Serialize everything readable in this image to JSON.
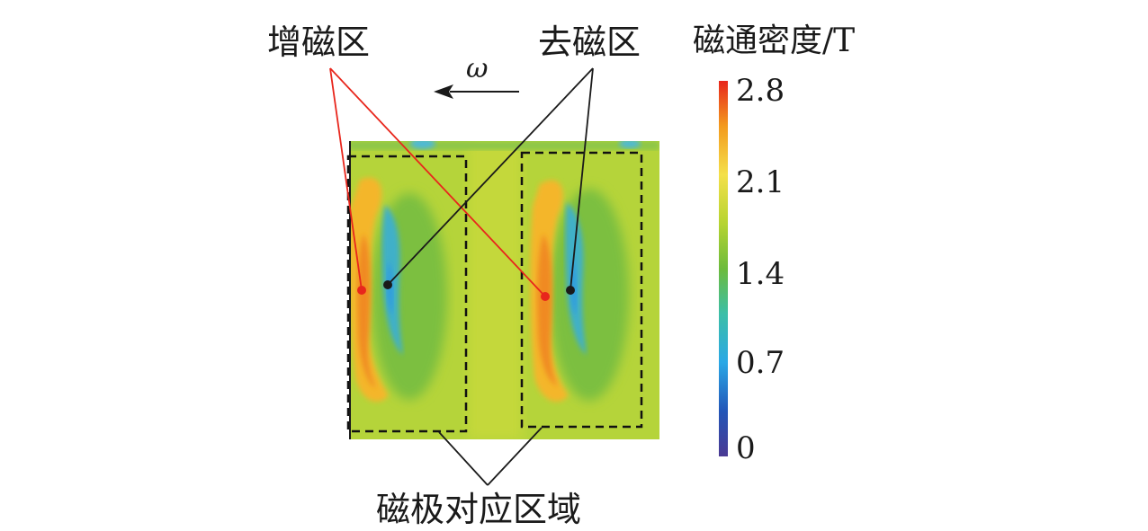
{
  "labels": {
    "enhance_zone": "增磁区",
    "demag_zone": "去磁区",
    "pole_region": "磁极对应区域",
    "colorbar_title": "磁通密度/T",
    "omega": "ω"
  },
  "colorbar": {
    "ticks": [
      "2.8",
      "2.1",
      "1.4",
      "0.7",
      "0"
    ],
    "stops": [
      "#e8261c",
      "#f39a1e",
      "#f4e04a",
      "#b6d431",
      "#6dbb3c",
      "#3cbfa7",
      "#2aa8e6",
      "#2356b8",
      "#4b3a93"
    ]
  },
  "colors": {
    "enhance_marker": "#e8261c",
    "demag_marker": "#1a1a1a",
    "field_background": "#b5d43a"
  }
}
